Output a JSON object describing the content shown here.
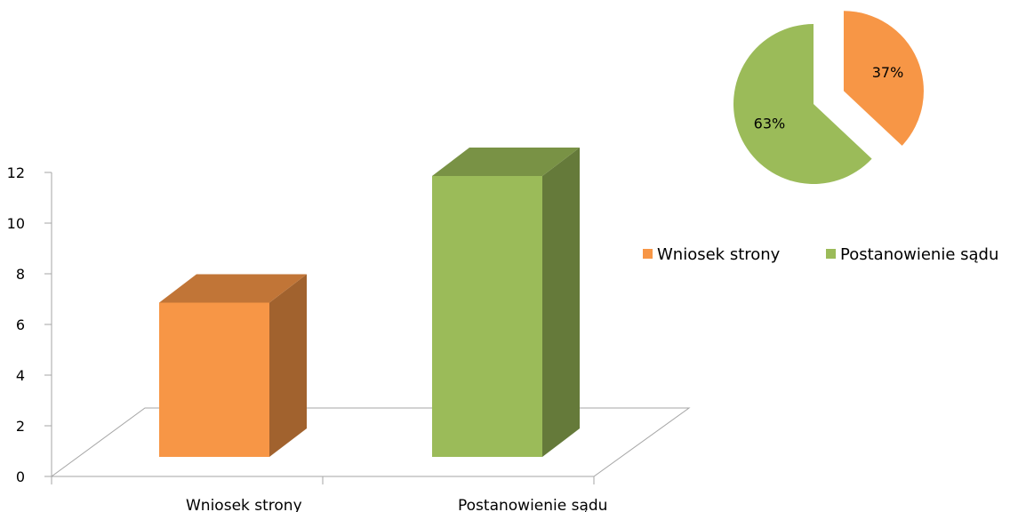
{
  "chart_data": [
    {
      "type": "bar",
      "style": "3d-column",
      "categories": [
        "Wniosek strony",
        "Postanowienie sądu"
      ],
      "values": [
        7,
        12
      ],
      "ylim": [
        0,
        12
      ],
      "yticks": [
        "0",
        "2",
        "4",
        "6",
        "8",
        "10",
        "12"
      ],
      "grid": false,
      "colors": [
        "#F79646",
        "#9BBB59"
      ]
    },
    {
      "type": "pie",
      "labels": [
        "Wniosek strony",
        "Postanowienie sądu"
      ],
      "values": [
        37,
        63
      ],
      "data_labels": [
        "37%",
        "63%"
      ],
      "exploded": "Wniosek strony",
      "colors": [
        "#F79646",
        "#9BBB59"
      ],
      "legend": {
        "position": "right",
        "entries": [
          "Wniosek strony",
          "Postanowienie sądu"
        ]
      }
    }
  ]
}
